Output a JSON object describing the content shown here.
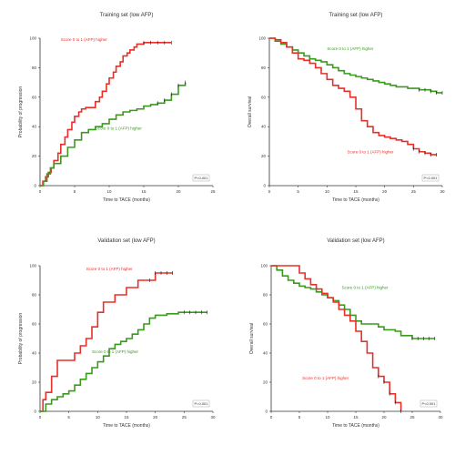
{
  "colors": {
    "red": "#e8302a",
    "green": "#3a9a1e",
    "axis": "#333333",
    "censor": "#222222"
  },
  "chart_data": [
    {
      "type": "line",
      "step": true,
      "title": "Training set (low AFP)",
      "xlabel": "Time to TACE (months)",
      "ylabel": "Probability of progression",
      "xlim": [
        0,
        25
      ],
      "ylim": [
        0,
        100
      ],
      "xticks": [
        0,
        5,
        10,
        15,
        20,
        25
      ],
      "yticks": [
        0,
        20,
        40,
        60,
        80,
        100
      ],
      "pvalue": "P<0.001",
      "series": [
        {
          "name": "Score 0 to 1 (AFP) higher",
          "color": "red",
          "label_pos": [
            3,
            98
          ],
          "x": [
            0,
            0.4,
            0.8,
            1.2,
            1.6,
            2,
            2.6,
            3,
            3.6,
            4,
            4.6,
            5,
            5.6,
            6,
            6.6,
            7,
            7.6,
            8,
            8.6,
            9,
            9.6,
            10,
            10.6,
            11,
            11.6,
            12,
            12.6,
            13,
            13.6,
            14,
            15,
            16,
            17,
            18,
            19
          ],
          "y": [
            0,
            3,
            6,
            9,
            12,
            17,
            22,
            28,
            33,
            38,
            43,
            47,
            50,
            52,
            53,
            53,
            53,
            57,
            60,
            64,
            69,
            73,
            77,
            81,
            84,
            88,
            90,
            92,
            94,
            96,
            97,
            97,
            97,
            97,
            97
          ]
        },
        {
          "name": "Score 0 to 1 (AFP) higher",
          "color": "green",
          "label_pos": [
            8,
            38
          ],
          "x": [
            0,
            0.5,
            1,
            1.5,
            2,
            3,
            4,
            5,
            6,
            7,
            8,
            9,
            10,
            11,
            12,
            13,
            14,
            15,
            16,
            17,
            18,
            19,
            20,
            21
          ],
          "y": [
            0,
            3,
            8,
            12,
            15,
            20,
            26,
            31,
            36,
            38,
            40,
            42,
            45,
            48,
            50,
            51,
            52,
            54,
            55,
            56,
            58,
            62,
            68,
            70
          ]
        }
      ]
    },
    {
      "type": "line",
      "step": true,
      "title": "Training set (low AFP)",
      "xlabel": "Time to TACE (months)",
      "ylabel": "Overall survival",
      "xlim": [
        0,
        30
      ],
      "ylim": [
        0,
        100
      ],
      "xticks": [
        0,
        5,
        10,
        15,
        20,
        25,
        30
      ],
      "yticks": [
        0,
        20,
        40,
        60,
        80,
        100
      ],
      "pvalue": "P<0.001",
      "series": [
        {
          "name": "Score 0 to 1 (AFP) higher",
          "color": "green",
          "label_pos": [
            10,
            92
          ],
          "x": [
            0,
            1,
            2,
            3,
            4,
            5,
            6,
            7,
            8,
            9,
            10,
            11,
            12,
            13,
            14,
            15,
            16,
            17,
            18,
            19,
            20,
            21,
            22,
            23,
            24,
            25,
            26,
            27,
            28,
            29,
            30
          ],
          "y": [
            100,
            98,
            96,
            94,
            92,
            90,
            88,
            86,
            85,
            84,
            82,
            80,
            78,
            76,
            75,
            74,
            73,
            72,
            71,
            70,
            69,
            68,
            67,
            67,
            66,
            66,
            65,
            65,
            64,
            63,
            63
          ]
        },
        {
          "name": "Score 0 to 1 (AFP) higher",
          "color": "red",
          "label_pos": [
            13.5,
            22
          ],
          "x": [
            0,
            1,
            2,
            3,
            4,
            5,
            6,
            7,
            8,
            9,
            10,
            11,
            12,
            13,
            14,
            15,
            16,
            17,
            18,
            19,
            20,
            21,
            22,
            23,
            24,
            25,
            26,
            27,
            28,
            29
          ],
          "y": [
            100,
            99,
            97,
            94,
            90,
            86,
            85,
            83,
            80,
            76,
            72,
            68,
            66,
            64,
            60,
            52,
            44,
            40,
            36,
            34,
            33,
            32,
            31,
            30,
            28,
            25,
            23,
            22,
            21,
            21
          ]
        }
      ]
    },
    {
      "type": "line",
      "step": true,
      "title": "Validation set (low AFP)",
      "xlabel": "Time to TACE (months)",
      "ylabel": "Probability of progression",
      "xlim": [
        0,
        30
      ],
      "ylim": [
        0,
        100
      ],
      "xticks": [
        0,
        5,
        10,
        15,
        20,
        25,
        30
      ],
      "yticks": [
        0,
        20,
        40,
        60,
        80,
        100
      ],
      "pvalue": "P=0.001",
      "series": [
        {
          "name": "Score 0 to 1 (AFP) higher",
          "color": "red",
          "label_pos": [
            8,
            97
          ],
          "x": [
            0,
            0.5,
            1,
            2,
            3,
            4,
            5,
            6,
            7,
            8,
            9,
            10,
            11,
            12,
            13,
            14,
            15,
            16,
            17,
            18,
            19,
            20,
            21,
            22,
            23
          ],
          "y": [
            0,
            8,
            13,
            24,
            35,
            35,
            35,
            40,
            45,
            50,
            58,
            68,
            75,
            75,
            80,
            80,
            85,
            85,
            90,
            90,
            90,
            95,
            95,
            95,
            95
          ]
        },
        {
          "name": "Score 0 to 1 (AFP) higher",
          "color": "green",
          "label_pos": [
            9,
            40
          ],
          "x": [
            0,
            1,
            2,
            3,
            4,
            5,
            6,
            7,
            8,
            9,
            10,
            11,
            12,
            13,
            14,
            15,
            16,
            17,
            18,
            19,
            20,
            21,
            22,
            23,
            24,
            25,
            26,
            27,
            28,
            29
          ],
          "y": [
            0,
            5,
            8,
            10,
            12,
            14,
            18,
            22,
            26,
            30,
            34,
            38,
            43,
            46,
            48,
            50,
            53,
            56,
            60,
            64,
            66,
            66,
            67,
            67,
            68,
            68,
            68,
            68,
            68,
            68
          ]
        }
      ]
    },
    {
      "type": "line",
      "step": true,
      "title": "Validation set (low AFP)",
      "xlabel": "Time to TACE (months)",
      "ylabel": "Overall survival",
      "xlim": [
        0,
        30
      ],
      "ylim": [
        0,
        100
      ],
      "xticks": [
        0,
        5,
        10,
        15,
        20,
        25,
        30
      ],
      "yticks": [
        0,
        20,
        40,
        60,
        80,
        100
      ],
      "pvalue": "P<0.001",
      "series": [
        {
          "name": "Score 0 to 1 (AFP) higher",
          "color": "green",
          "label_pos": [
            12.5,
            84
          ],
          "x": [
            0,
            1,
            2,
            3,
            4,
            5,
            6,
            7,
            8,
            9,
            10,
            11,
            12,
            13,
            14,
            15,
            16,
            17,
            18,
            19,
            20,
            21,
            22,
            23,
            24,
            25,
            26,
            27,
            28,
            29
          ],
          "y": [
            100,
            97,
            93,
            90,
            88,
            86,
            85,
            84,
            82,
            80,
            78,
            76,
            73,
            70,
            66,
            62,
            60,
            60,
            60,
            58,
            56,
            56,
            55,
            52,
            52,
            50,
            50,
            50,
            50,
            50
          ]
        },
        {
          "name": "Score 0 to 1 (AFP) higher",
          "color": "red",
          "label_pos": [
            5.5,
            22
          ],
          "x": [
            0,
            1,
            2,
            3,
            4,
            5,
            6,
            7,
            8,
            9,
            10,
            11,
            12,
            13,
            14,
            15,
            16,
            17,
            18,
            19,
            20,
            21,
            22,
            23
          ],
          "y": [
            100,
            100,
            100,
            100,
            100,
            95,
            91,
            87,
            84,
            81,
            78,
            75,
            70,
            66,
            62,
            55,
            48,
            40,
            30,
            24,
            20,
            12,
            6,
            0
          ]
        }
      ]
    }
  ]
}
